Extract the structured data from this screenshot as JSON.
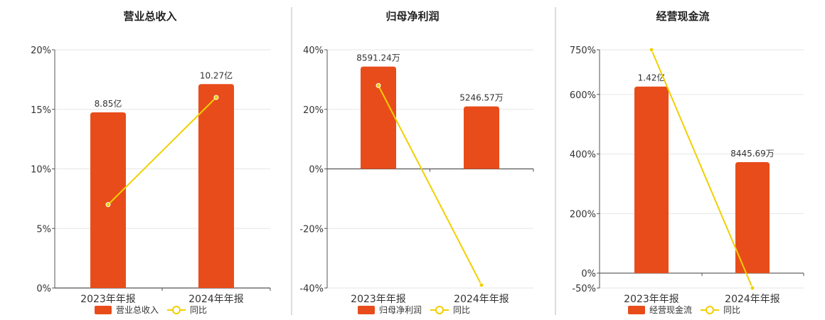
{
  "colors": {
    "bar": "#E84C1A",
    "line": "#F0D000",
    "grid": "#E6E6E6",
    "axis": "#555555",
    "divider": "#BBBBBB"
  },
  "chart_data": [
    {
      "type": "bar",
      "title": "营业总收入",
      "categories": [
        "2023年年报",
        "2024年年报"
      ],
      "series": [
        {
          "name": "营业总收入",
          "type": "bar",
          "axis": "left",
          "values": [
            8.85,
            10.27
          ],
          "labels": [
            "8.85亿",
            "10.27亿"
          ]
        },
        {
          "name": "同比",
          "type": "line",
          "axis": "right",
          "values": [
            7.0,
            16.0
          ]
        }
      ],
      "yticks": [
        "20%",
        "15%",
        "10%",
        "5%",
        "0%"
      ],
      "yaxis_pct": [
        0,
        20
      ],
      "bar_axis": [
        0,
        12
      ],
      "grid": true,
      "legend": "bottom"
    },
    {
      "type": "bar",
      "title": "归母净利润",
      "categories": [
        "2023年年报",
        "2024年年报"
      ],
      "series": [
        {
          "name": "归母净利润",
          "type": "bar",
          "axis": "left",
          "values": [
            8591.24,
            5246.57
          ],
          "labels": [
            "8591.24万",
            "5246.57万"
          ]
        },
        {
          "name": "同比",
          "type": "line",
          "axis": "right",
          "values": [
            28.0,
            -39.0
          ]
        }
      ],
      "yticks": [
        "40%",
        "20%",
        "0%",
        "-20%",
        "-40%"
      ],
      "yaxis_pct": [
        -40,
        40
      ],
      "bar_axis": [
        -10000,
        10000
      ],
      "grid": true,
      "legend": "bottom"
    },
    {
      "type": "bar",
      "title": "经营现金流",
      "categories": [
        "2023年年报",
        "2024年年报"
      ],
      "series": [
        {
          "name": "经营现金流",
          "type": "bar",
          "axis": "left",
          "values": [
            14200,
            8445.69
          ],
          "labels": [
            "1.42亿",
            "8445.69万"
          ]
        },
        {
          "name": "同比",
          "type": "line",
          "axis": "right",
          "values": [
            750,
            -50
          ]
        }
      ],
      "yticks": [
        "750%",
        "600%",
        "400%",
        "200%",
        "0%",
        "-50%"
      ],
      "yaxis_pct": [
        -50,
        750
      ],
      "bar_axis": [
        -1133,
        17000
      ],
      "grid": true,
      "legend": "bottom"
    }
  ]
}
